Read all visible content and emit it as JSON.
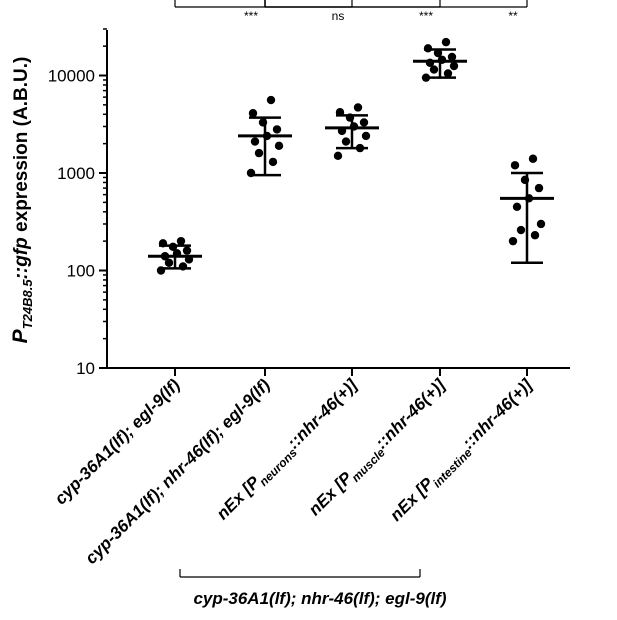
{
  "chart_data": {
    "type": "scatter",
    "yscale": "log",
    "ylim": [
      10,
      30000
    ],
    "yticks": [
      10,
      100,
      1000,
      10000
    ],
    "ytick_labels": [
      "10",
      "100",
      "1000",
      "10000"
    ],
    "ylabel": {
      "main": "P",
      "subscript": "T24B8.5",
      "mid": "::",
      "italic": "gfp",
      "tail": " expression (A.B.U.)"
    },
    "categories": [
      {
        "label": "cyp-36A1(lf); egl-9(lf)",
        "prefix": "",
        "sub": "",
        "suffix": ""
      },
      {
        "label": "cyp-36A1(lf); nhr-46(lf); egl-9(lf)",
        "prefix": "",
        "sub": "",
        "suffix": ""
      },
      {
        "label": "",
        "prefix": "nEx [P",
        "sub": "neurons",
        "suffix": "::nhr-46(+)]"
      },
      {
        "label": "",
        "prefix": "nEx [P",
        "sub": "muscle",
        "suffix": "::nhr-46(+)]"
      },
      {
        "label": "",
        "prefix": "nEx [P",
        "sub": "intestine",
        "suffix": "::nhr-46(+)]"
      }
    ],
    "series": [
      {
        "points": [
          100,
          110,
          120,
          130,
          140,
          150,
          160,
          175,
          190,
          200
        ],
        "mean": 140,
        "sd_low": 105,
        "sd_high": 180
      },
      {
        "points": [
          1000,
          1300,
          1600,
          1900,
          2100,
          2400,
          2800,
          3300,
          4100,
          5600
        ],
        "mean": 2400,
        "sd_low": 950,
        "sd_high": 3700
      },
      {
        "points": [
          1500,
          1800,
          2100,
          2400,
          2700,
          3000,
          3300,
          3700,
          4200,
          4700
        ],
        "mean": 2900,
        "sd_low": 1800,
        "sd_high": 3900
      },
      {
        "points": [
          9500,
          10500,
          11500,
          12500,
          13500,
          14500,
          15500,
          17000,
          19000,
          22000
        ],
        "mean": 14000,
        "sd_low": 9500,
        "sd_high": 18500
      },
      {
        "points": [
          200,
          230,
          260,
          300,
          450,
          550,
          700,
          850,
          1200,
          1400
        ],
        "mean": 550,
        "sd_low": 120,
        "sd_high": 1000
      }
    ],
    "comparisons": [
      {
        "from": 0,
        "to": 1,
        "label": "***"
      },
      {
        "from": 1,
        "to": 2,
        "label": "ns"
      },
      {
        "from": 1,
        "to": 3,
        "label": "***"
      },
      {
        "from": 1,
        "to": 4,
        "label": "**"
      }
    ],
    "group_bracket": {
      "from": 1,
      "to": 4,
      "label": "cyp-36A1(lf); nhr-46(lf); egl-9(lf)"
    }
  }
}
